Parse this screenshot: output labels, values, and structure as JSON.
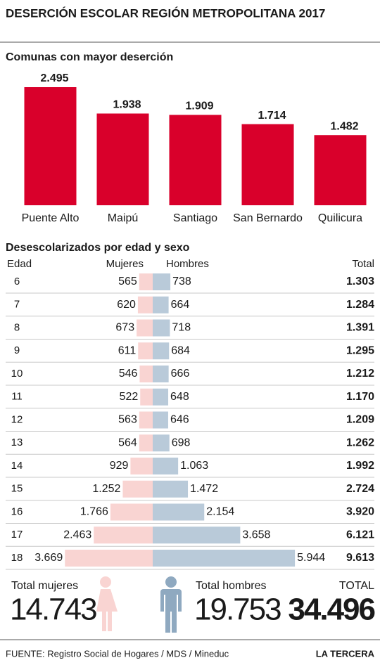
{
  "title": "DESERCIÓN ESCOLAR REGIÓN METROPOLITANA 2017",
  "chart_data": [
    {
      "type": "bar",
      "title": "Comunas con mayor deserción",
      "categories": [
        "Puente Alto",
        "Maipú",
        "Santiago",
        "San Bernardo",
        "Quilicura"
      ],
      "values": [
        2495,
        1938,
        1909,
        1714,
        1482
      ],
      "value_labels": [
        "2.495",
        "1.938",
        "1.909",
        "1.714",
        "1.482"
      ],
      "color": "#d9002b"
    },
    {
      "type": "butterfly",
      "title": "Desescolarizados por edad y sexo",
      "category_header": "Edad",
      "categories": [
        "6",
        "7",
        "8",
        "9",
        "10",
        "11",
        "12",
        "13",
        "14",
        "15",
        "16",
        "17",
        "18"
      ],
      "series": [
        {
          "name": "Mujeres",
          "color": "#f9d4d2",
          "values": [
            565,
            620,
            673,
            611,
            546,
            522,
            563,
            564,
            929,
            1252,
            1766,
            2463,
            3669
          ],
          "value_labels": [
            "565",
            "620",
            "673",
            "611",
            "546",
            "522",
            "563",
            "564",
            "929",
            "1.252",
            "1.766",
            "2.463",
            "3.669"
          ]
        },
        {
          "name": "Hombres",
          "color": "#b9cad9",
          "values": [
            738,
            664,
            718,
            684,
            666,
            648,
            646,
            698,
            1063,
            1472,
            2154,
            3658,
            5944
          ],
          "value_labels": [
            "738",
            "664",
            "718",
            "684",
            "666",
            "648",
            "646",
            "698",
            "1.063",
            "1.472",
            "2.154",
            "3.658",
            "5.944"
          ]
        }
      ],
      "totals": {
        "name": "Total",
        "values": [
          "1.303",
          "1.284",
          "1.391",
          "1.295",
          "1.212",
          "1.170",
          "1.209",
          "1.262",
          "1.992",
          "2.724",
          "3.920",
          "6.121",
          "9.613"
        ]
      }
    }
  ],
  "summary": [
    {
      "label": "Total mujeres",
      "value": "14.743"
    },
    {
      "label": "Total hombres",
      "value": "19.753"
    },
    {
      "label": "TOTAL",
      "value": "34.496"
    }
  ],
  "footer": {
    "source": "FUENTE: Registro Social de Hogares / MDS / Mineduc",
    "brand": "LA TERCERA"
  }
}
